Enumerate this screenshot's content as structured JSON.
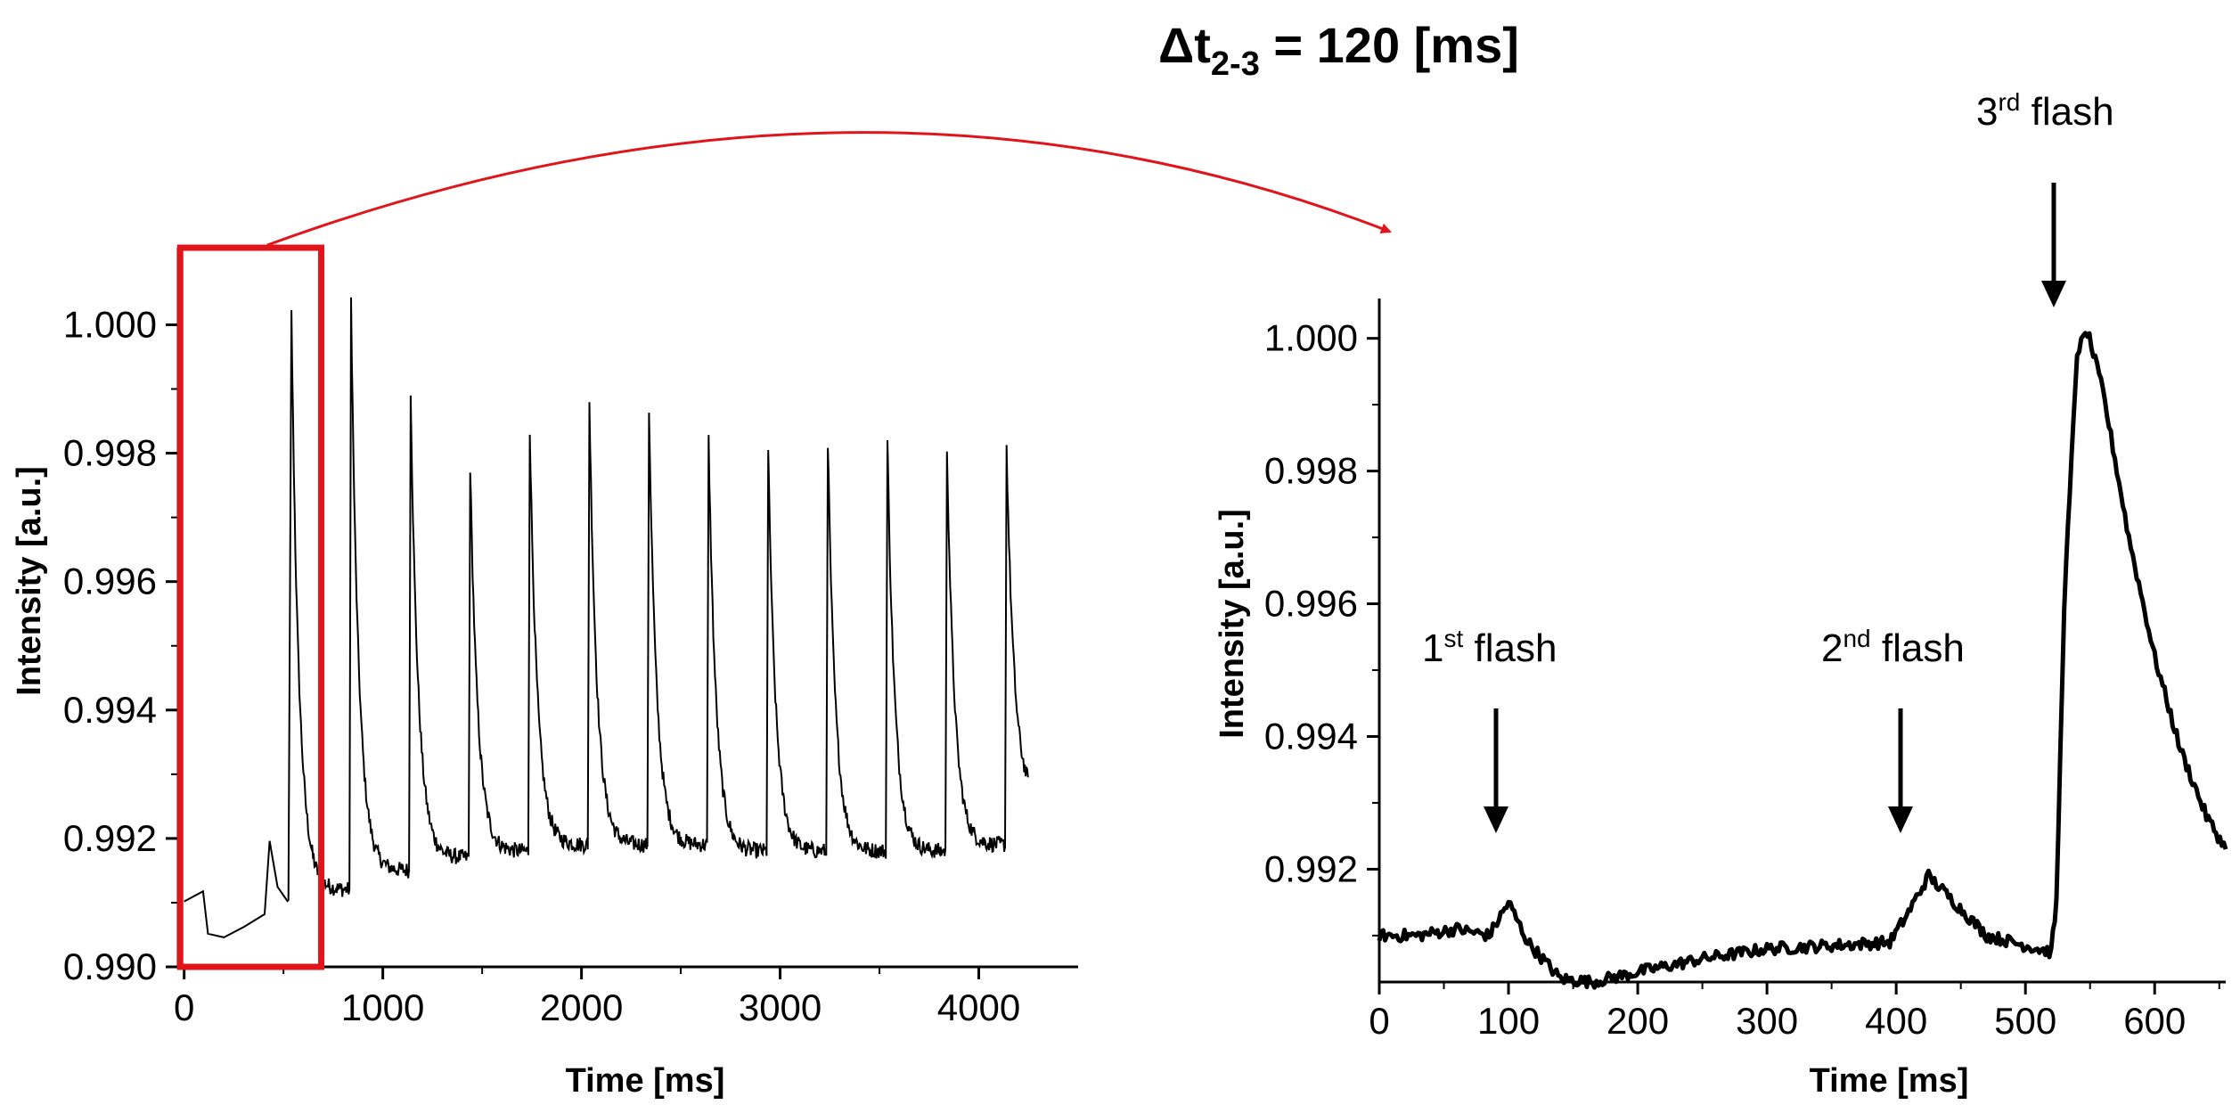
{
  "figure": {
    "title": {
      "delta": "Δ",
      "t": "t",
      "sub": "2-3",
      "rest": " = 120 [ms]"
    }
  },
  "chart_data": [
    {
      "id": "left",
      "type": "line",
      "xlabel": "Time [ms]",
      "ylabel": "Intensity [a.u.]",
      "xlim": [
        -30,
        4500
      ],
      "ylim": [
        0.99,
        1.0012
      ],
      "xticks": [
        0,
        1000,
        2000,
        3000,
        4000
      ],
      "xtick_labels": [
        "0",
        "1000",
        "2000",
        "3000",
        "4000"
      ],
      "yticks": [
        0.99,
        0.992,
        0.994,
        0.996,
        0.998,
        1.0
      ],
      "ytick_labels": [
        "0.990",
        "0.992",
        "0.994",
        "0.996",
        "0.998",
        "1.000"
      ],
      "baseline": [
        [
          0,
          0.991
        ],
        [
          95,
          0.9912
        ],
        [
          120,
          0.9905
        ],
        [
          200,
          0.9904
        ],
        [
          300,
          0.9906
        ],
        [
          405,
          0.9908
        ],
        [
          430,
          0.992
        ],
        [
          470,
          0.9912
        ],
        [
          520,
          0.991
        ]
      ],
      "series": [
        {
          "name": "intensity",
          "flashes_ms": [
            100,
            420,
            540,
            840,
            1140,
            1440,
            1740,
            2040,
            2340,
            2640,
            2940,
            3240,
            3540,
            3840,
            4140
          ],
          "peaks": [
            0.9916,
            0.992,
            1.0002,
            1.0004,
            0.999,
            0.9978,
            0.9984,
            0.9988,
            0.9987,
            0.9982,
            0.998,
            0.9982,
            0.9982,
            0.9981,
            0.9981
          ],
          "troughs": [
            0.9903,
            0.9908,
            0.9912,
            0.9915,
            0.9917,
            0.9918,
            0.9919,
            0.9919,
            0.9919,
            0.9918,
            0.9918,
            0.9918,
            0.9918,
            0.9919,
            0.9926
          ],
          "end_ms": 4250
        }
      ],
      "highlight_box": {
        "x": [
          -20,
          690
        ],
        "y": [
          0.99,
          1.0012
        ]
      }
    },
    {
      "id": "right",
      "type": "line",
      "xlabel": "Time [ms]",
      "ylabel": "Intensity [a.u.]",
      "xlim": [
        0,
        655
      ],
      "ylim": [
        0.9903,
        1.0006
      ],
      "xticks": [
        0,
        100,
        200,
        300,
        400,
        500,
        600
      ],
      "xtick_labels": [
        "0",
        "100",
        "200",
        "300",
        "400",
        "500",
        "600"
      ],
      "yticks": [
        0.992,
        0.994,
        0.996,
        0.998,
        1.0
      ],
      "ytick_labels": [
        "0.992",
        "0.994",
        "0.996",
        "0.998",
        "1.000"
      ],
      "series": [
        {
          "name": "intensity",
          "points": [
            [
              0,
              0.991
            ],
            [
              30,
              0.991
            ],
            [
              60,
              0.9911
            ],
            [
              85,
              0.991
            ],
            [
              100,
              0.9915
            ],
            [
              115,
              0.9909
            ],
            [
              140,
              0.99035
            ],
            [
              165,
              0.9903
            ],
            [
              200,
              0.99045
            ],
            [
              250,
              0.99065
            ],
            [
              300,
              0.9908
            ],
            [
              350,
              0.99085
            ],
            [
              395,
              0.9909
            ],
            [
              408,
              0.9913
            ],
            [
              425,
              0.9919
            ],
            [
              445,
              0.9915
            ],
            [
              470,
              0.991
            ],
            [
              500,
              0.99085
            ],
            [
              520,
              0.99075
            ],
            [
              524,
              0.9915
            ],
            [
              530,
              0.996
            ],
            [
              540,
              0.9998
            ],
            [
              548,
              1.0001
            ],
            [
              560,
              0.9992
            ],
            [
              580,
              0.997
            ],
            [
              600,
              0.9952
            ],
            [
              620,
              0.9938
            ],
            [
              640,
              0.9928
            ],
            [
              655,
              0.9923
            ]
          ]
        }
      ],
      "annotations": [
        {
          "label": "flash",
          "ord": "1",
          "sup": "st",
          "x": 85
        },
        {
          "label": "flash",
          "ord": "2",
          "sup": "nd",
          "x": 400
        },
        {
          "label": "flash",
          "ord": "3",
          "sup": "rd",
          "x": 520
        }
      ]
    }
  ],
  "colors": {
    "line": "#000000",
    "highlight": "#e0151b",
    "arrow": "#e0151b"
  }
}
